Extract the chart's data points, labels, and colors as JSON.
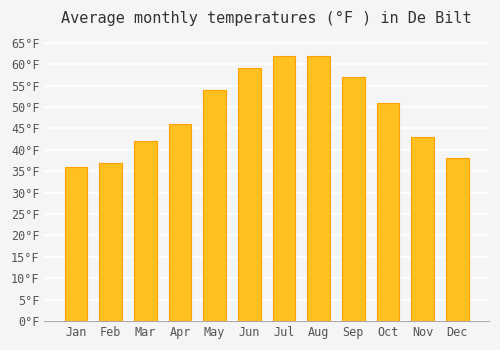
{
  "title": "Average monthly temperatures (°F ) in De Bilt",
  "months": [
    "Jan",
    "Feb",
    "Mar",
    "Apr",
    "May",
    "Jun",
    "Jul",
    "Aug",
    "Sep",
    "Oct",
    "Nov",
    "Dec"
  ],
  "values": [
    36,
    37,
    42,
    46,
    54,
    59,
    62,
    62,
    57,
    51,
    43,
    38
  ],
  "bar_color_face": "#FFC020",
  "bar_color_edge": "#FFA000",
  "bar_width": 0.65,
  "ylim": [
    0,
    67
  ],
  "yticks": [
    0,
    5,
    10,
    15,
    20,
    25,
    30,
    35,
    40,
    45,
    50,
    55,
    60,
    65
  ],
  "ylabel_suffix": "°F",
  "background_color": "#f5f5f5",
  "grid_color": "#ffffff",
  "title_fontsize": 11,
  "tick_fontsize": 8.5,
  "title_color": "#333333",
  "tick_color": "#555555",
  "font_family": "monospace"
}
